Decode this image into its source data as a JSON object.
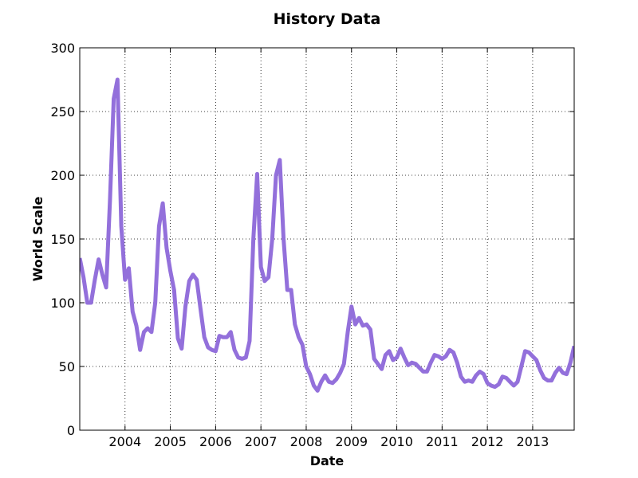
{
  "chart_data": {
    "type": "line",
    "title": "History Data",
    "x_label": "Date",
    "y_label": "World Scale",
    "color": "#9370db",
    "grid": true,
    "x": [
      2003,
      2003.083,
      2003.167,
      2003.25,
      2003.333,
      2003.417,
      2003.5,
      2003.583,
      2003.667,
      2003.75,
      2003.833,
      2003.917,
      2004,
      2004.083,
      2004.167,
      2004.25,
      2004.333,
      2004.417,
      2004.5,
      2004.583,
      2004.667,
      2004.75,
      2004.833,
      2004.917,
      2005,
      2005.083,
      2005.167,
      2005.25,
      2005.333,
      2005.417,
      2005.5,
      2005.583,
      2005.667,
      2005.75,
      2005.833,
      2005.917,
      2006,
      2006.083,
      2006.167,
      2006.25,
      2006.333,
      2006.417,
      2006.5,
      2006.583,
      2006.667,
      2006.75,
      2006.833,
      2006.917,
      2007,
      2007.083,
      2007.167,
      2007.25,
      2007.333,
      2007.417,
      2007.5,
      2007.583,
      2007.667,
      2007.75,
      2007.833,
      2007.917,
      2008,
      2008.083,
      2008.167,
      2008.25,
      2008.333,
      2008.417,
      2008.5,
      2008.583,
      2008.667,
      2008.75,
      2008.833,
      2008.917,
      2009,
      2009.083,
      2009.167,
      2009.25,
      2009.333,
      2009.417,
      2009.5,
      2009.583,
      2009.667,
      2009.75,
      2009.833,
      2009.917,
      2010,
      2010.083,
      2010.167,
      2010.25,
      2010.333,
      2010.417,
      2010.5,
      2010.583,
      2010.667,
      2010.75,
      2010.833,
      2010.917,
      2011,
      2011.083,
      2011.167,
      2011.25,
      2011.333,
      2011.417,
      2011.5,
      2011.583,
      2011.667,
      2011.75,
      2011.833,
      2011.917,
      2012,
      2012.083,
      2012.167,
      2012.25,
      2012.333,
      2012.417,
      2012.5,
      2012.583,
      2012.667,
      2012.75,
      2012.833,
      2012.917,
      2013,
      2013.083,
      2013.167,
      2013.25,
      2013.333,
      2013.417,
      2013.5,
      2013.583,
      2013.667,
      2013.75,
      2013.833,
      2013.917
    ],
    "values": [
      135,
      120,
      100,
      100,
      118,
      134,
      122,
      112,
      180,
      260,
      275,
      160,
      118,
      127,
      93,
      82,
      63,
      77,
      80,
      77,
      100,
      160,
      178,
      143,
      125,
      110,
      72,
      64,
      97,
      117,
      122,
      118,
      95,
      73,
      65,
      63,
      62,
      74,
      73,
      73,
      77,
      63,
      57,
      56,
      57,
      70,
      150,
      201,
      128,
      117,
      120,
      150,
      200,
      212,
      150,
      110,
      110,
      83,
      73,
      67,
      50,
      44,
      35,
      31,
      38,
      43,
      38,
      37,
      40,
      45,
      52,
      77,
      97,
      83,
      88,
      82,
      83,
      79,
      56,
      52,
      48,
      59,
      62,
      55,
      57,
      64,
      57,
      51,
      53,
      52,
      49,
      46,
      46,
      53,
      59,
      58,
      56,
      58,
      63,
      61,
      53,
      42,
      38,
      39,
      38,
      43,
      46,
      44,
      37,
      35,
      34,
      36,
      42,
      41,
      38,
      35,
      38,
      50,
      62,
      61,
      58,
      55,
      47,
      41,
      39,
      39,
      45,
      49,
      45,
      44,
      53,
      66
    ],
    "xlim": [
      2003,
      2013.917
    ],
    "xticks": [
      2004,
      2005,
      2006,
      2007,
      2008,
      2009,
      2010,
      2011,
      2012,
      2013
    ],
    "ylim": [
      0,
      300
    ],
    "yticks": [
      0,
      50,
      100,
      150,
      200,
      250,
      300
    ]
  }
}
